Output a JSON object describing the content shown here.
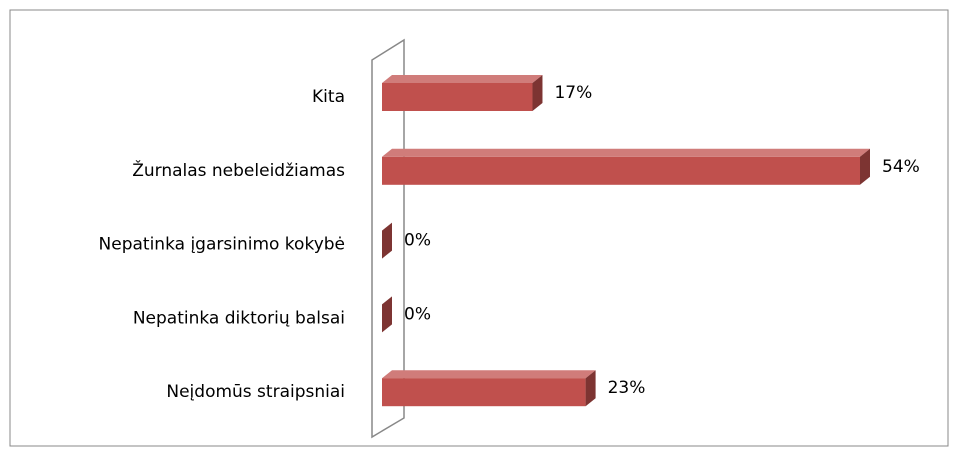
{
  "chart_data": {
    "type": "bar3d-horizontal",
    "categories": [
      "Kita",
      "Žurnalas nebeleidžiamas",
      "Nepatinka įgarsinimo kokybė",
      "Nepatinka diktorių balsai",
      "Neįdomūs straipsniai"
    ],
    "values": [
      17,
      54,
      0,
      0,
      23
    ],
    "value_labels": [
      "17%",
      "54%",
      "0%",
      "0%",
      "23%"
    ],
    "color": "#c0504d"
  }
}
